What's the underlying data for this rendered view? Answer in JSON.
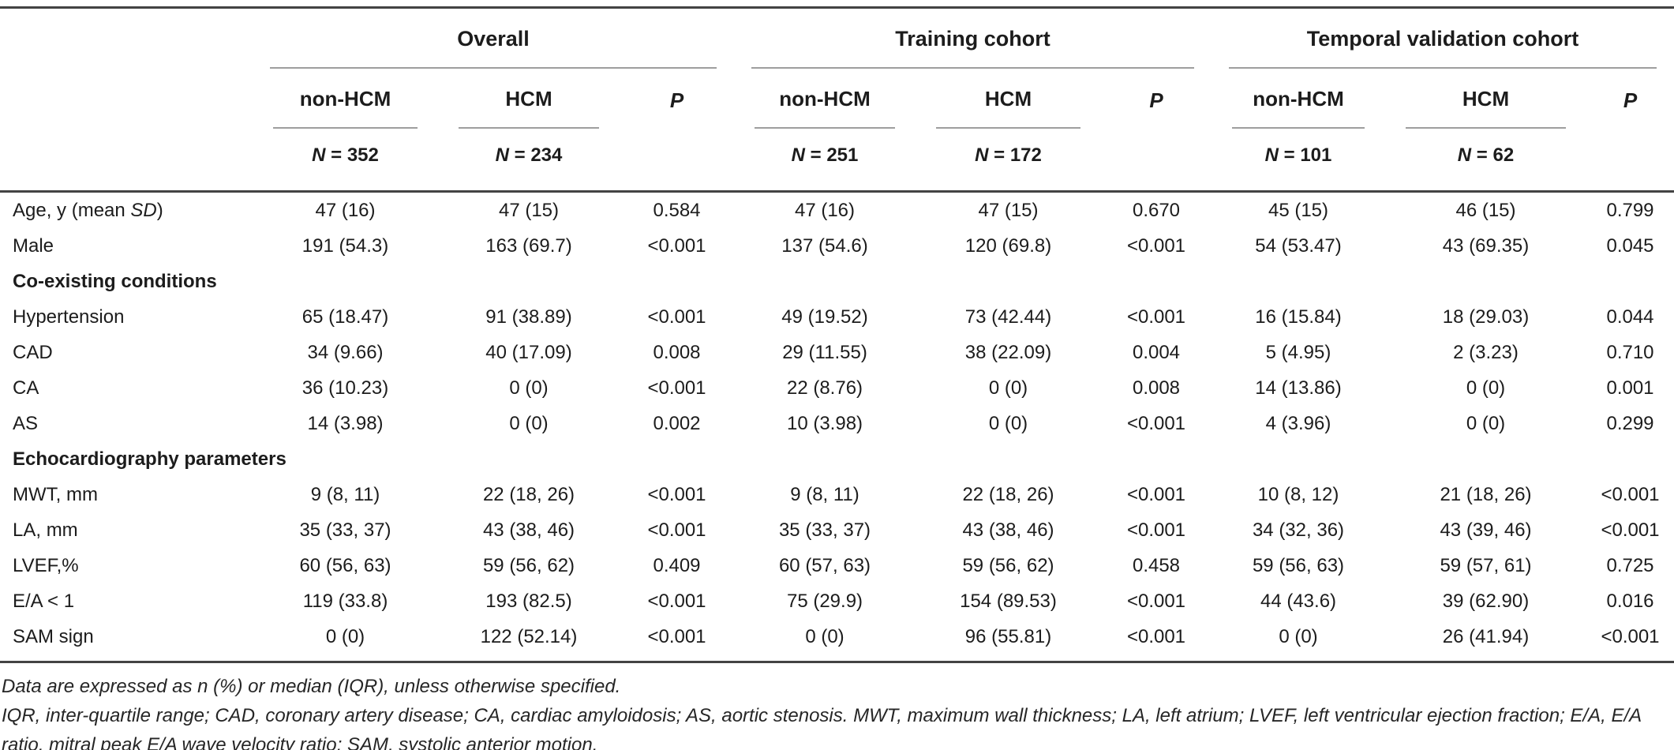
{
  "table": {
    "header": {
      "groups": [
        {
          "label": "Overall",
          "columns": [
            {
              "label": "non-HCM",
              "n_italic": "N",
              "n_rest": " = 352"
            },
            {
              "label": "HCM",
              "n_italic": "N",
              "n_rest": " = 234"
            },
            {
              "label": "P"
            }
          ]
        },
        {
          "label": "Training cohort",
          "columns": [
            {
              "label": "non-HCM",
              "n_italic": "N",
              "n_rest": " = 251"
            },
            {
              "label": "HCM",
              "n_italic": "N",
              "n_rest": " = 172"
            },
            {
              "label": "P"
            }
          ]
        },
        {
          "label": "Temporal validation cohort",
          "columns": [
            {
              "label": "non-HCM",
              "n_italic": "N",
              "n_rest": " = 101"
            },
            {
              "label": "HCM",
              "n_italic": "N",
              "n_rest": " = 62"
            },
            {
              "label": "P"
            }
          ]
        }
      ]
    },
    "rows": [
      {
        "kind": "data",
        "label": [
          {
            "text": "Age, y (mean "
          },
          {
            "text": "SD",
            "italic": true
          },
          {
            "text": ")"
          }
        ],
        "values": [
          "47 (16)",
          "47 (15)",
          "0.584",
          "47 (16)",
          "47 (15)",
          "0.670",
          "45 (15)",
          "46 (15)",
          "0.799"
        ]
      },
      {
        "kind": "data",
        "label": [
          {
            "text": "Male"
          }
        ],
        "values": [
          "191 (54.3)",
          "163 (69.7)",
          "<0.001",
          "137 (54.6)",
          "120 (69.8)",
          "<0.001",
          "54 (53.47)",
          "43 (69.35)",
          "0.045"
        ]
      },
      {
        "kind": "section",
        "label": [
          {
            "text": "Co-existing conditions"
          }
        ]
      },
      {
        "kind": "data",
        "label": [
          {
            "text": "Hypertension"
          }
        ],
        "values": [
          "65 (18.47)",
          "91 (38.89)",
          "<0.001",
          "49 (19.52)",
          "73 (42.44)",
          "<0.001",
          "16 (15.84)",
          "18 (29.03)",
          "0.044"
        ]
      },
      {
        "kind": "data",
        "label": [
          {
            "text": "CAD"
          }
        ],
        "values": [
          "34 (9.66)",
          "40 (17.09)",
          "0.008",
          "29 (11.55)",
          "38 (22.09)",
          "0.004",
          "5 (4.95)",
          "2 (3.23)",
          "0.710"
        ]
      },
      {
        "kind": "data",
        "label": [
          {
            "text": "CA"
          }
        ],
        "values": [
          "36 (10.23)",
          "0 (0)",
          "<0.001",
          "22 (8.76)",
          "0 (0)",
          "0.008",
          "14 (13.86)",
          "0 (0)",
          "0.001"
        ]
      },
      {
        "kind": "data",
        "label": [
          {
            "text": "AS"
          }
        ],
        "values": [
          "14 (3.98)",
          "0 (0)",
          "0.002",
          "10 (3.98)",
          "0 (0)",
          "<0.001",
          "4 (3.96)",
          "0 (0)",
          "0.299"
        ]
      },
      {
        "kind": "section",
        "label": [
          {
            "text": "Echocardiography parameters"
          }
        ]
      },
      {
        "kind": "data",
        "label": [
          {
            "text": "MWT, mm"
          }
        ],
        "values": [
          "9 (8, 11)",
          "22 (18, 26)",
          "<0.001",
          "9 (8, 11)",
          "22 (18, 26)",
          "<0.001",
          "10 (8, 12)",
          "21 (18, 26)",
          "<0.001"
        ]
      },
      {
        "kind": "data",
        "label": [
          {
            "text": "LA, mm"
          }
        ],
        "values": [
          "35 (33, 37)",
          "43 (38, 46)",
          "<0.001",
          "35 (33, 37)",
          "43 (38, 46)",
          "<0.001",
          "34 (32, 36)",
          "43 (39, 46)",
          "<0.001"
        ]
      },
      {
        "kind": "data",
        "label": [
          {
            "text": "LVEF,%"
          }
        ],
        "values": [
          "60 (56, 63)",
          "59 (56, 62)",
          "0.409",
          "60 (57, 63)",
          "59 (56, 62)",
          "0.458",
          "59 (56, 63)",
          "59 (57, 61)",
          "0.725"
        ]
      },
      {
        "kind": "data",
        "label": [
          {
            "text": "E/A < 1"
          }
        ],
        "values": [
          "119 (33.8)",
          "193 (82.5)",
          "<0.001",
          "75 (29.9)",
          "154 (89.53)",
          "<0.001",
          "44 (43.6)",
          "39 (62.90)",
          "0.016"
        ]
      },
      {
        "kind": "data",
        "label": [
          {
            "text": "SAM sign"
          }
        ],
        "values": [
          "0 (0)",
          "122 (52.14)",
          "<0.001",
          "0 (0)",
          "96 (55.81)",
          "<0.001",
          "0 (0)",
          "26 (41.94)",
          "<0.001"
        ]
      }
    ],
    "footnotes": {
      "line1": "Data are expressed as n (%) or median (IQR), unless otherwise specified.",
      "line2": "IQR, inter-quartile range; CAD, coronary artery disease; CA, cardiac amyloidosis; AS, aortic stenosis. MWT, maximum wall thickness; LA, left atrium; LVEF, left ventricular ejection fraction; E/A, E/A ratio, mitral peak E/A wave velocity ratio; SAM, systolic anterior motion."
    },
    "colors": {
      "rule_heavy": "#434343",
      "rule_light": "#9e9e9e",
      "text": "#1c1c1c"
    }
  }
}
